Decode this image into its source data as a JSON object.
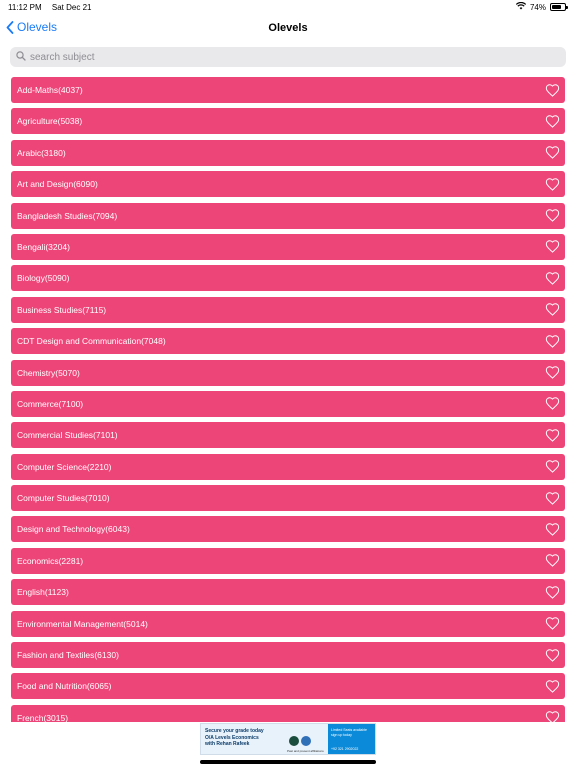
{
  "status_bar": {
    "time": "11:12 PM",
    "date": "Sat Dec 21",
    "battery": "74%",
    "battery_level": 0.74
  },
  "nav": {
    "back_label": "Olevels",
    "title": "Olevels"
  },
  "search": {
    "placeholder": "search subject",
    "value": ""
  },
  "subjects": [
    "Add-Maths(4037)",
    "Agriculture(5038)",
    "Arabic(3180)",
    "Art and Design(6090)",
    "Bangladesh Studies(7094)",
    "Bengali(3204)",
    "Biology(5090)",
    "Business Studies(7115)",
    "CDT Design and Communication(7048)",
    "Chemistry(5070)",
    "Commerce(7100)",
    "Commercial Studies(7101)",
    "Computer Science(2210)",
    "Computer Studies(7010)",
    "Design and Technology(6043)",
    "Economics(2281)",
    "English(1123)",
    "Environmental Management(5014)",
    "Fashion and Textiles(6130)",
    "Food and Nutrition(6065)",
    "French(3015)"
  ],
  "ad": {
    "line1": "Secure your grade today",
    "line2": "O/A Levels Economics",
    "line3": "with Rehan Rafeek",
    "sub": "Past and present affiliations",
    "side_line1": "Limited Seats available",
    "side_line2": "sign up today",
    "side_phone": "+92 321 2902022"
  },
  "colors": {
    "row": "#ee4579",
    "accent": "#1a7cf5"
  }
}
